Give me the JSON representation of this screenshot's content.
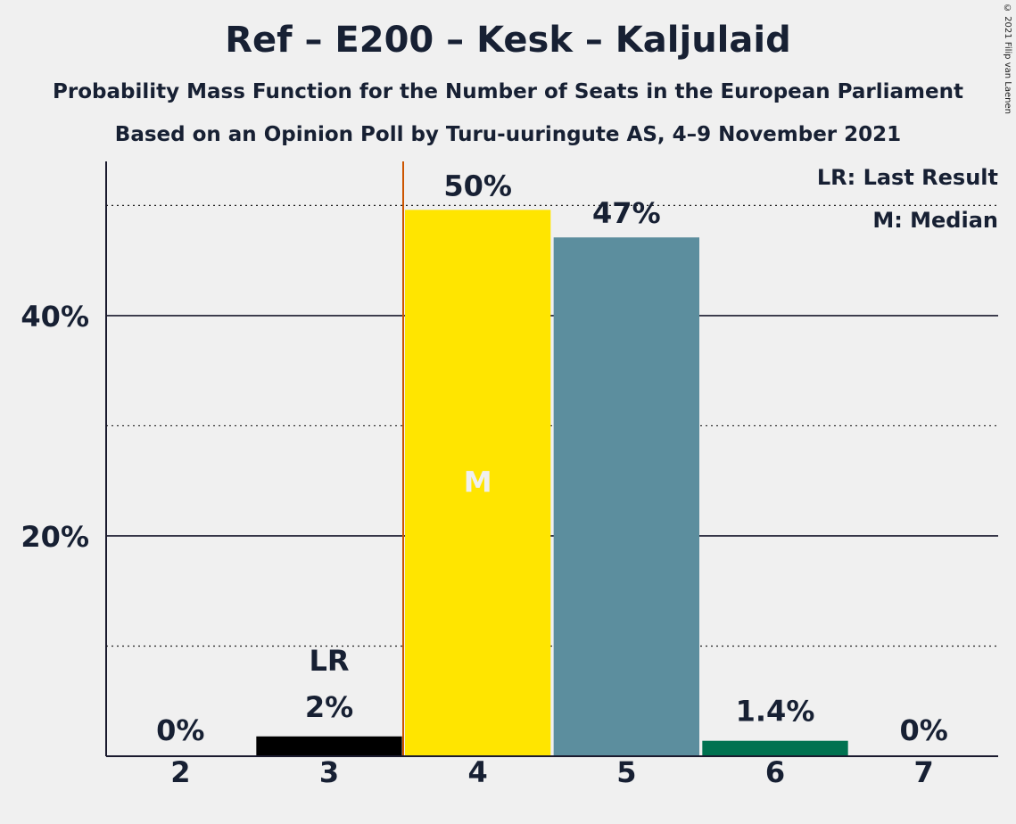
{
  "title": "Ref – E200 – Kesk – Kaljulaid",
  "subtitle1": "Probability Mass Function for the Number of Seats in the European Parliament",
  "subtitle2": "Based on an Opinion Poll by Turu-uuringute AS, 4–9 November 2021",
  "copyright": "© 2021 Filip van Laenen",
  "legend": {
    "last_result": "LR: Last Result",
    "median": "M: Median"
  },
  "chart_data": {
    "type": "bar",
    "categories": [
      "2",
      "3",
      "4",
      "5",
      "6",
      "7"
    ],
    "values": [
      0,
      1.8,
      49.6,
      47.1,
      1.4,
      0
    ],
    "value_labels": [
      "0%",
      "2%",
      "50%",
      "47%",
      "1.4%",
      "0%"
    ],
    "bar_colors": [
      "#000000",
      "#000000",
      "#FFE500",
      "#5C8E9E",
      "#007250",
      "#000000"
    ],
    "ylim": [
      0,
      54
    ],
    "yticks_labeled": [
      {
        "value": 20,
        "label": "20%"
      },
      {
        "value": 40,
        "label": "40%"
      }
    ],
    "yticks_minor": [
      10,
      30,
      50
    ],
    "last_result": {
      "category": "3",
      "label": "LR"
    },
    "median": {
      "category": "4",
      "label": "M"
    },
    "median_line_color": "#CC5500",
    "grid": true
  }
}
